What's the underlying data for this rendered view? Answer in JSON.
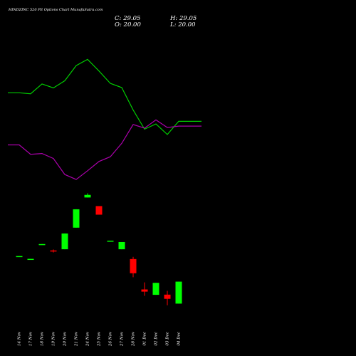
{
  "chart_data": {
    "type": "candlestick",
    "title": "HINDZINC 520  PE Options  Chart MunafaSutra.com",
    "ohlc": {
      "open_label": "O: 20.00",
      "high_label": "H: 29.05",
      "low_label": "L: 20.00",
      "close_label": "C: 29.05"
    },
    "categories": [
      "14 Nov",
      "17 Nov",
      "18 Nov",
      "19 Nov",
      "20 Nov",
      "21 Nov",
      "24 Nov",
      "25 Nov",
      "26 Nov",
      "27 Nov",
      "28 Nov",
      "01 Dec",
      "02 Dec",
      "03 Dec",
      "04 Dec"
    ],
    "candles": [
      {
        "open": 0.47,
        "close": 0.52,
        "high": 0.52,
        "low": 0.47,
        "color": "#00ff00"
      },
      {
        "open": 0.37,
        "close": 0.38,
        "high": 0.38,
        "low": 0.37,
        "color": "#00ff00"
      },
      {
        "open": 1.1,
        "close": 1.12,
        "high": 1.12,
        "low": 1.1,
        "color": "#00ff00"
      },
      {
        "open": 0.75,
        "close": 0.8,
        "high": 0.85,
        "low": 0.7,
        "color": "#ff0000"
      },
      {
        "open": 0.86,
        "close": 1.65,
        "high": 1.65,
        "low": 0.86,
        "color": "#00ff00"
      },
      {
        "open": 1.94,
        "close": 2.86,
        "high": 2.86,
        "low": 1.94,
        "color": "#00ff00"
      },
      {
        "open": 3.45,
        "close": 3.58,
        "high": 3.66,
        "low": 3.45,
        "color": "#00ff00"
      },
      {
        "open": 3.02,
        "close": 2.59,
        "high": 3.02,
        "low": 2.59,
        "color": "#ff0000"
      },
      {
        "open": 1.26,
        "close": 1.29,
        "high": 1.29,
        "low": 1.26,
        "color": "#00ff00"
      },
      {
        "open": 0.86,
        "close": 1.22,
        "high": 1.22,
        "low": 0.86,
        "color": "#00ff00"
      },
      {
        "open": 0.37,
        "close": -0.34,
        "high": 0.48,
        "low": -0.54,
        "color": "#ff0000"
      },
      {
        "open": -1.15,
        "close": -1.26,
        "high": -0.8,
        "low": -1.47,
        "color": "#ff0000"
      },
      {
        "open": -1.42,
        "close": -0.82,
        "high": -0.82,
        "low": -1.42,
        "color": "#00ff00"
      },
      {
        "open": -1.41,
        "close": -1.62,
        "high": -1.22,
        "low": -1.94,
        "color": "#ff0000"
      },
      {
        "open": -1.86,
        "close": -0.76,
        "high": -0.76,
        "low": -1.86,
        "color": "#00ff00"
      }
    ],
    "lines": [
      {
        "color": "#00cc00",
        "x": [
          -1,
          0,
          1,
          2,
          3,
          4,
          5,
          6,
          7,
          8,
          9,
          10,
          11,
          12,
          13,
          14,
          15,
          16
        ],
        "values": [
          8.69,
          8.69,
          8.64,
          9.13,
          8.93,
          9.29,
          10.05,
          10.36,
          9.78,
          9.16,
          8.95,
          7.83,
          6.87,
          7.13,
          6.6,
          7.26,
          7.26,
          7.26
        ]
      },
      {
        "color": "#aa00aa",
        "x": [
          -1,
          0,
          1,
          2,
          3,
          4,
          5,
          6,
          7,
          8,
          9,
          10,
          11,
          12,
          13,
          14,
          15,
          16
        ],
        "values": [
          6.08,
          6.08,
          5.61,
          5.65,
          5.4,
          4.6,
          4.35,
          4.79,
          5.25,
          5.49,
          6.16,
          7.1,
          6.92,
          7.33,
          6.95,
          7.02,
          7.02,
          7.02
        ]
      }
    ],
    "ylim": [
      -4.48,
      13.33
    ],
    "grid": false,
    "legend": "none"
  }
}
